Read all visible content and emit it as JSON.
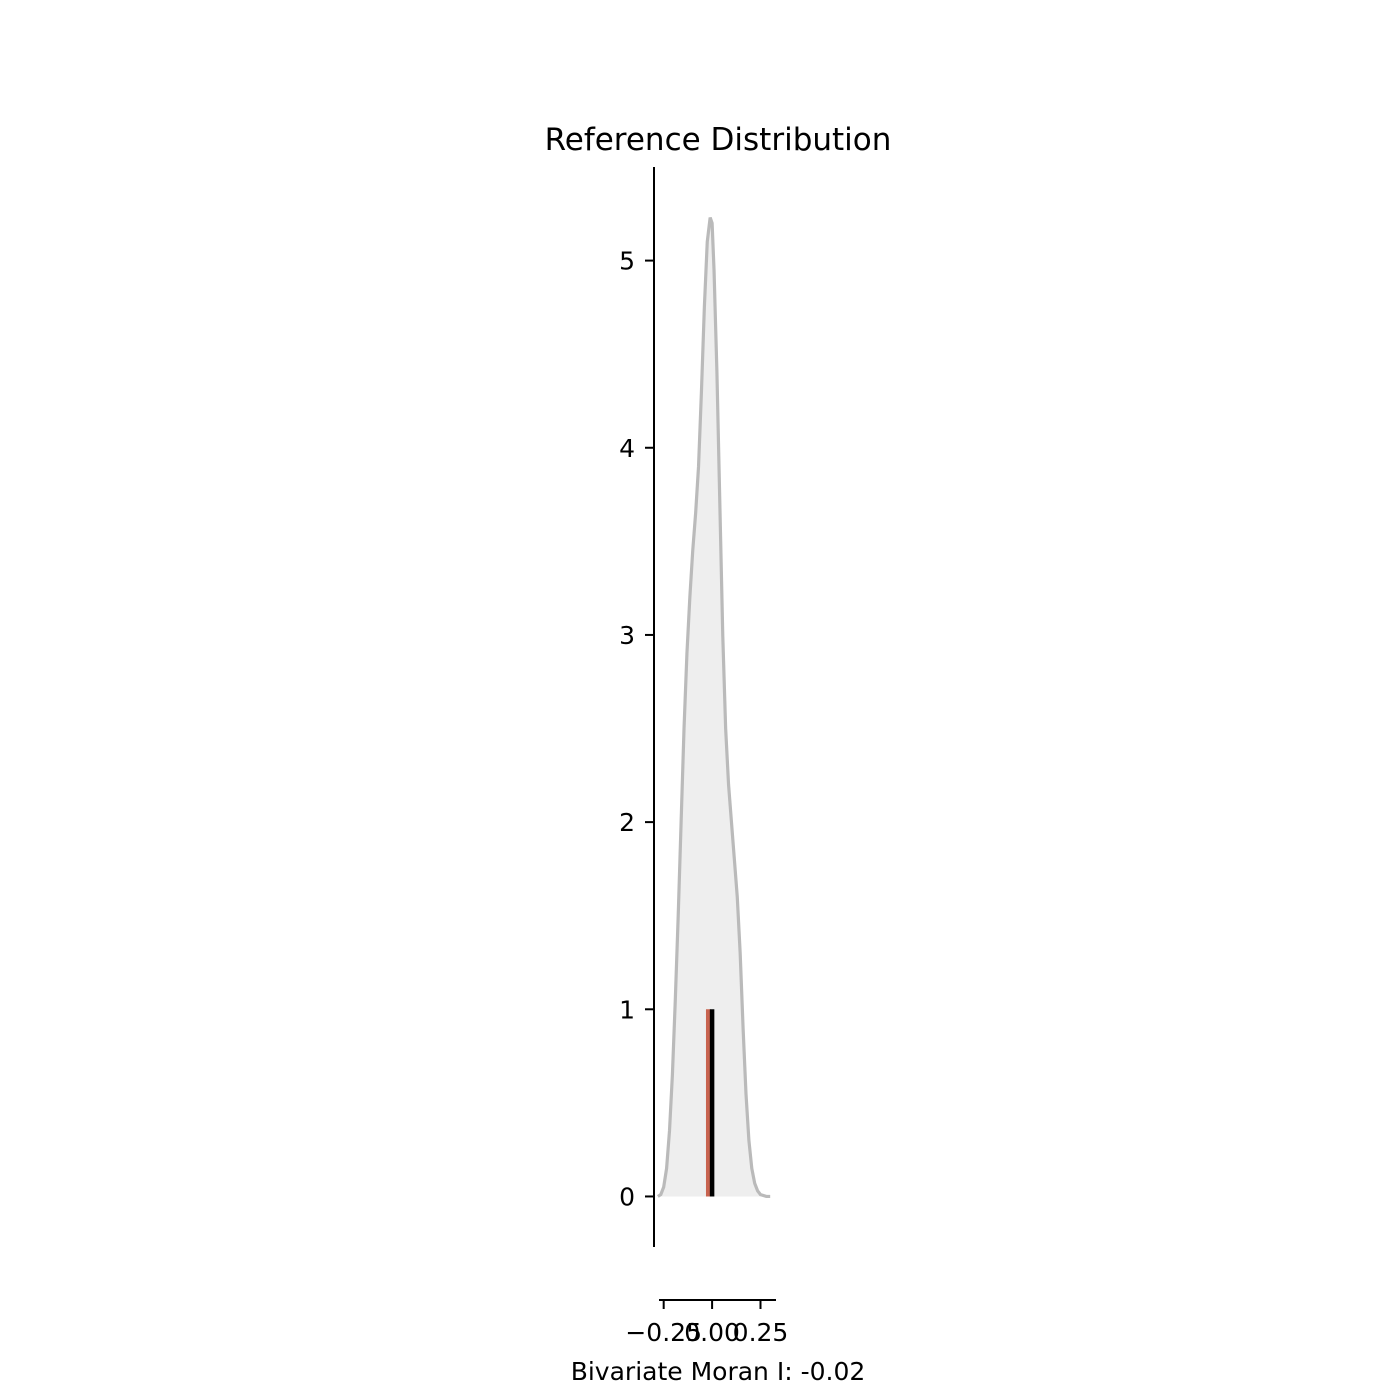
{
  "chart_data": {
    "type": "area",
    "title": "Reference Distribution",
    "xlabel": "Bivariate Moran I: -0.02",
    "ylabel": "",
    "xlim": [
      -0.3,
      0.33
    ],
    "ylim": [
      -0.27,
      5.5
    ],
    "xticks": [
      -0.25,
      0.0,
      0.25
    ],
    "xtick_labels": [
      "−0.25",
      "0.00",
      "0.25"
    ],
    "yticks": [
      0,
      1,
      2,
      3,
      4,
      5
    ],
    "ytick_labels": [
      "0",
      "1",
      "2",
      "3",
      "4",
      "5"
    ],
    "grid": false,
    "series": [
      {
        "kind": "density",
        "color": "#bababa",
        "fill": "#eeeeee",
        "x": [
          -0.28,
          -0.265,
          -0.25,
          -0.235,
          -0.22,
          -0.205,
          -0.19,
          -0.175,
          -0.16,
          -0.145,
          -0.13,
          -0.115,
          -0.1,
          -0.085,
          -0.07,
          -0.055,
          -0.04,
          -0.025,
          -0.01,
          0.0,
          0.01,
          0.025,
          0.04,
          0.055,
          0.07,
          0.085,
          0.1,
          0.115,
          0.13,
          0.145,
          0.16,
          0.175,
          0.19,
          0.205,
          0.22,
          0.235,
          0.25,
          0.265,
          0.28,
          0.3
        ],
        "y": [
          0.0,
          0.01,
          0.05,
          0.15,
          0.35,
          0.65,
          1.05,
          1.5,
          2.0,
          2.5,
          2.9,
          3.2,
          3.45,
          3.65,
          3.9,
          4.3,
          4.75,
          5.1,
          5.23,
          5.2,
          4.95,
          4.4,
          3.7,
          3.0,
          2.5,
          2.2,
          2.0,
          1.8,
          1.6,
          1.3,
          0.9,
          0.55,
          0.3,
          0.15,
          0.07,
          0.03,
          0.01,
          0.005,
          0.0,
          0.0
        ]
      },
      {
        "kind": "vline",
        "name": "",
        "x": -0.02,
        "y0": 0,
        "y1": 1,
        "color": "#c8634f"
      },
      {
        "kind": "vline",
        "name": "",
        "x": 0.0,
        "y0": 0,
        "y1": 1,
        "color": "#000000"
      }
    ]
  }
}
